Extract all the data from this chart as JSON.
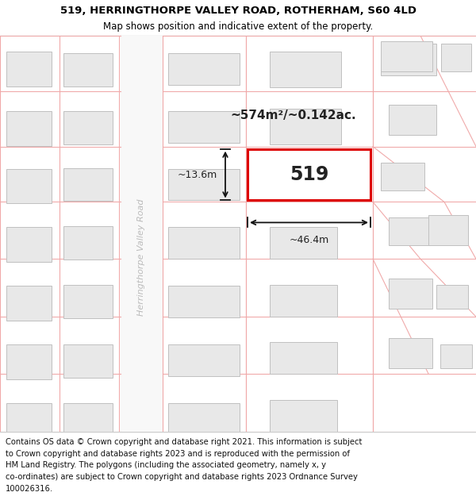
{
  "title_line1": "519, HERRINGTHORPE VALLEY ROAD, ROTHERHAM, S60 4LD",
  "title_line2": "Map shows position and indicative extent of the property.",
  "footer_lines": [
    "Contains OS data © Crown copyright and database right 2021. This information is subject",
    "to Crown copyright and database rights 2023 and is reproduced with the permission of",
    "HM Land Registry. The polygons (including the associated geometry, namely x, y",
    "co-ordinates) are subject to Crown copyright and database rights 2023 Ordnance Survey",
    "100026316."
  ],
  "area_label": "~574m²/~0.142ac.",
  "property_number": "519",
  "dim_width": "~46.4m",
  "dim_height": "~13.6m",
  "street_label": "Herringthorpe Valley Road",
  "bg_color": "#ffffff",
  "map_bg": "#ffffff",
  "building_fill": "#e8e8e8",
  "building_edge": "#c0c0c0",
  "highlight_fill": "#ffffff",
  "highlight_edge": "#dd0000",
  "plot_line_color": "#f0aaaa",
  "title_fontsize": 9.5,
  "subtitle_fontsize": 8.5,
  "footer_fontsize": 7.2
}
